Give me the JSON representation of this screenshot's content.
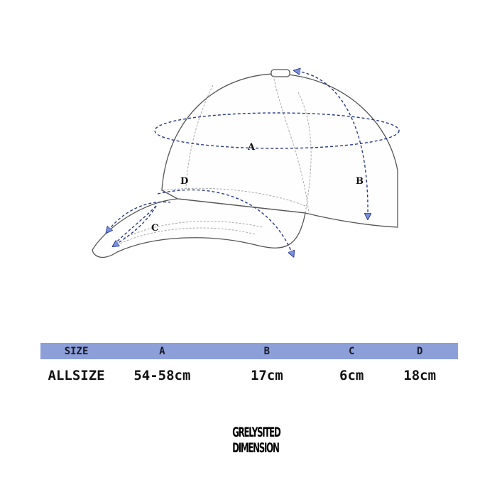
{
  "diagram": {
    "labels": {
      "a": "A",
      "b": "B",
      "c": "C",
      "d": "D"
    },
    "arrow_color": "#2a3a8c",
    "arrowhead_color": "#7b90e0"
  },
  "size_table": {
    "header_color": "#8c9fd8",
    "headers": [
      "SIZE",
      "A",
      "B",
      "C",
      "D"
    ],
    "rows": [
      [
        "ALLSIZE",
        "54-58cm",
        "17cm",
        "6cm",
        "18cm"
      ]
    ]
  },
  "brand": {
    "logo_text": "GRELYSITED DIMENSION",
    "line1": "GRELYSITED",
    "line2": "DIMENSION"
  }
}
